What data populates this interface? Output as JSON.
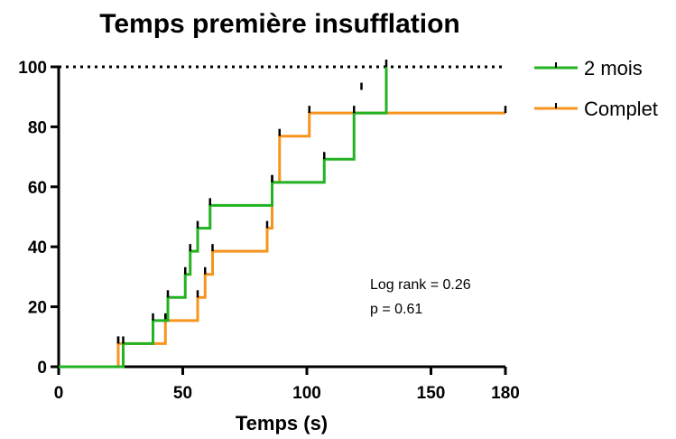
{
  "chart_data": {
    "type": "line",
    "subtype": "kaplan-meier-step",
    "title": "Temps première insufflation",
    "xlabel": "Temps (s)",
    "ylabel": "",
    "xlim": [
      0,
      180
    ],
    "ylim": [
      0,
      100
    ],
    "x_ticks": [
      0,
      50,
      100,
      150,
      180
    ],
    "y_ticks": [
      0,
      20,
      40,
      60,
      80,
      100
    ],
    "reference_line_y": 100,
    "legend_position": "top-right",
    "series": [
      {
        "name": "2 mois",
        "color": "#22b222",
        "steps": [
          [
            0,
            0
          ],
          [
            26,
            7.7
          ],
          [
            38,
            15.4
          ],
          [
            44,
            23.1
          ],
          [
            51,
            30.8
          ],
          [
            53,
            38.5
          ],
          [
            56,
            46.2
          ],
          [
            61,
            53.8
          ],
          [
            86,
            61.5
          ],
          [
            107,
            69.2
          ],
          [
            119,
            84.6
          ],
          [
            132,
            100
          ]
        ],
        "censored": [
          [
            24,
            7.7
          ],
          [
            26,
            7.7
          ],
          [
            38,
            15.4
          ],
          [
            44,
            23.1
          ],
          [
            51,
            30.8
          ],
          [
            53,
            38.5
          ],
          [
            56,
            46.2
          ],
          [
            61,
            53.8
          ],
          [
            86,
            61.5
          ],
          [
            107,
            69.2
          ],
          [
            119,
            84.6
          ],
          [
            122,
            92.3
          ],
          [
            132,
            100
          ]
        ],
        "end_x": 132
      },
      {
        "name": "Complet",
        "color": "#f7941d",
        "steps": [
          [
            0,
            0
          ],
          [
            24,
            7.7
          ],
          [
            43,
            15.4
          ],
          [
            56,
            23.1
          ],
          [
            59,
            30.8
          ],
          [
            62,
            38.5
          ],
          [
            84,
            46.2
          ],
          [
            86,
            61.5
          ],
          [
            89,
            76.9
          ],
          [
            101,
            84.6
          ]
        ],
        "censored": [
          [
            24,
            7.7
          ],
          [
            43,
            15.4
          ],
          [
            56,
            23.1
          ],
          [
            59,
            30.8
          ],
          [
            62,
            38.5
          ],
          [
            84,
            46.2
          ],
          [
            86,
            61.5
          ],
          [
            89,
            76.9
          ],
          [
            101,
            84.6
          ],
          [
            180,
            84.6
          ]
        ],
        "end_x": 180
      }
    ],
    "annotations": [
      "Log rank = 0.26",
      "p = 0.61"
    ]
  }
}
